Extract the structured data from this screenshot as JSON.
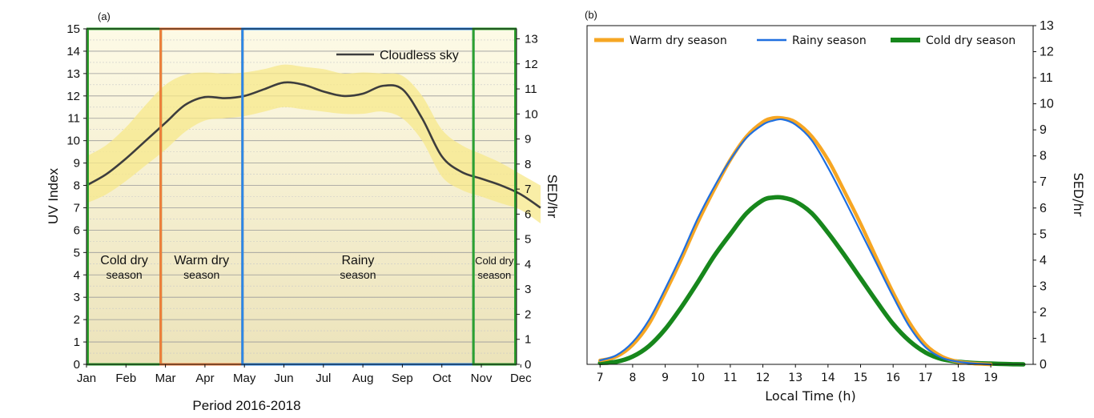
{
  "chart_data": [
    {
      "panel_label": "(a)",
      "type": "line",
      "xlabel": "Period 2016-2018",
      "ylabel": "UV Index",
      "y2label": "SED/hr",
      "categories": [
        "Jan",
        "Feb",
        "Mar",
        "Apr",
        "May",
        "Jun",
        "Jul",
        "Aug",
        "Sep",
        "Oct",
        "Nov",
        "Dec"
      ],
      "ylim": [
        0,
        15
      ],
      "y2lim": [
        0,
        13.4
      ],
      "yticks": [
        0,
        1,
        2,
        3,
        4,
        5,
        6,
        7,
        8,
        9,
        10,
        11,
        12,
        13,
        14,
        15
      ],
      "y2ticks": [
        0,
        1,
        2,
        3,
        4,
        5,
        6,
        7,
        8,
        9,
        10,
        11,
        12,
        13
      ],
      "grid": true,
      "series": [
        {
          "name": "Cloudless sky",
          "x": [
            0,
            0.5,
            1,
            1.5,
            2,
            2.5,
            3,
            3.5,
            4,
            4.5,
            5,
            5.5,
            6,
            6.5,
            7,
            7.5,
            8,
            8.5,
            9,
            9.5,
            10,
            10.5,
            11,
            11.5
          ],
          "values": [
            8.0,
            8.5,
            9.2,
            10.0,
            10.8,
            11.6,
            11.95,
            11.9,
            12.0,
            12.3,
            12.6,
            12.5,
            12.2,
            12.0,
            12.1,
            12.45,
            12.3,
            11.0,
            9.3,
            8.6,
            8.3,
            8.0,
            7.6,
            7.0
          ],
          "band_upper": [
            9.3,
            9.8,
            10.6,
            11.6,
            12.5,
            12.95,
            13.05,
            13.0,
            13.05,
            13.2,
            13.4,
            13.3,
            13.2,
            13.0,
            13.05,
            13.0,
            12.9,
            12.0,
            10.5,
            9.8,
            9.4,
            9.0,
            8.5,
            8.0
          ],
          "band_lower": [
            7.2,
            7.6,
            8.2,
            8.9,
            9.6,
            10.4,
            10.9,
            11.0,
            11.1,
            11.3,
            11.5,
            11.4,
            11.3,
            11.2,
            11.2,
            11.3,
            11.0,
            10.0,
            8.4,
            7.8,
            7.5,
            7.2,
            6.9,
            6.3
          ],
          "color": "#3d3d3d",
          "band_color": "#f7e88a"
        }
      ],
      "season_regions": [
        {
          "label": [
            "Cold dry",
            "season"
          ],
          "start": -0.1,
          "end": 1.88,
          "color": "#2ea12e"
        },
        {
          "label": [
            "Warm dry",
            "season"
          ],
          "start": 1.88,
          "end": 3.95,
          "color": "#ef7d3a"
        },
        {
          "label": [
            "Rainy",
            "season"
          ],
          "start": 3.95,
          "end": 9.8,
          "color": "#2b88e8"
        },
        {
          "label": [
            "Cold dry",
            "season"
          ],
          "start": 9.8,
          "end": 11.55,
          "color": "#2ea12e"
        }
      ],
      "legend_position": "top-right"
    },
    {
      "panel_label": "(b)",
      "type": "line",
      "xlabel": "Local Time (h)",
      "y2label": "SED/hr",
      "xticks": [
        7,
        8,
        9,
        10,
        11,
        12,
        13,
        14,
        15,
        16,
        17,
        18,
        19
      ],
      "xlim": [
        6.6,
        20.3
      ],
      "ylim": [
        0,
        13
      ],
      "y2ticks": [
        0,
        1,
        2,
        3,
        4,
        5,
        6,
        7,
        8,
        9,
        10,
        11,
        12,
        13
      ],
      "grid": false,
      "legend_position": "top",
      "series": [
        {
          "name": "Warm dry season",
          "color": "#f6a623",
          "x": [
            7.0,
            7.5,
            8.0,
            8.5,
            9.0,
            9.5,
            10.0,
            10.5,
            11.0,
            11.5,
            12.0,
            12.3,
            12.6,
            13.0,
            13.5,
            14.0,
            14.5,
            15.0,
            15.5,
            16.0,
            16.5,
            17.0,
            17.5,
            18.0,
            18.5,
            19.0
          ],
          "values": [
            0.15,
            0.3,
            0.75,
            1.55,
            2.75,
            4.05,
            5.45,
            6.7,
            7.85,
            8.75,
            9.3,
            9.45,
            9.45,
            9.3,
            8.75,
            7.85,
            6.65,
            5.4,
            4.05,
            2.75,
            1.6,
            0.75,
            0.3,
            0.1,
            0.03,
            0.0
          ]
        },
        {
          "name": "Rainy season",
          "color": "#1f6fe0",
          "x": [
            7.0,
            7.5,
            8.0,
            8.5,
            9.0,
            9.5,
            10.0,
            10.5,
            11.0,
            11.5,
            12.0,
            12.3,
            12.6,
            13.0,
            13.5,
            14.0,
            14.5,
            15.0,
            15.5,
            16.0,
            16.5,
            17.0,
            17.5,
            18.0,
            18.5,
            19.0
          ],
          "values": [
            0.15,
            0.35,
            0.85,
            1.7,
            2.9,
            4.2,
            5.6,
            6.8,
            7.85,
            8.7,
            9.2,
            9.35,
            9.4,
            9.2,
            8.6,
            7.55,
            6.35,
            5.1,
            3.85,
            2.6,
            1.45,
            0.65,
            0.25,
            0.1,
            0.03,
            0.0
          ]
        },
        {
          "name": "Cold dry season",
          "color": "#17871c",
          "x": [
            7.0,
            7.5,
            8.0,
            8.5,
            9.0,
            9.5,
            10.0,
            10.5,
            11.0,
            11.5,
            12.0,
            12.3,
            12.6,
            13.0,
            13.5,
            14.0,
            14.5,
            15.0,
            15.5,
            16.0,
            16.5,
            17.0,
            17.5,
            18.0,
            18.5,
            19.0,
            19.5,
            20.0
          ],
          "values": [
            0.05,
            0.1,
            0.3,
            0.7,
            1.35,
            2.2,
            3.15,
            4.15,
            5.0,
            5.8,
            6.3,
            6.4,
            6.4,
            6.25,
            5.8,
            5.05,
            4.2,
            3.3,
            2.4,
            1.55,
            0.9,
            0.45,
            0.2,
            0.1,
            0.05,
            0.03,
            0.01,
            0.0
          ]
        }
      ]
    }
  ]
}
